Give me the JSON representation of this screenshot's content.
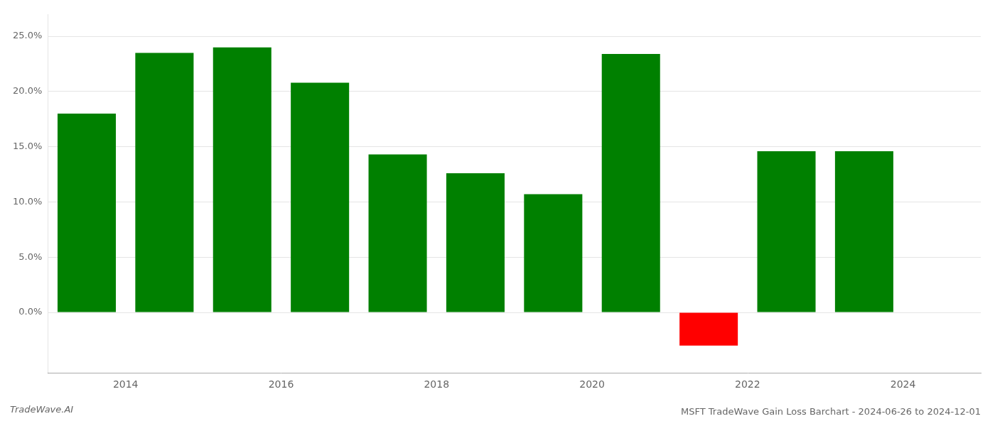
{
  "chart_data": {
    "type": "bar",
    "title": "MSFT TradeWave Gain Loss Barchart - 2024-06-26 to 2024-12-01",
    "annotations": [
      "TradeWave.AI"
    ],
    "x": [
      2013,
      2014,
      2015,
      2016,
      2017,
      2018,
      2019,
      2020,
      2021,
      2022,
      2023
    ],
    "values": [
      0.18,
      0.235,
      0.24,
      0.208,
      0.143,
      0.126,
      0.107,
      0.234,
      -0.03,
      0.146,
      0.146
    ],
    "colors": [
      "#008000",
      "#008000",
      "#008000",
      "#008000",
      "#008000",
      "#008000",
      "#008000",
      "#008000",
      "#ff0000",
      "#008000",
      "#008000"
    ],
    "xlim": [
      2012.5,
      2024.5
    ],
    "xticks": [
      {
        "value": 2013.5,
        "label": "2014"
      },
      {
        "value": 2015.5,
        "label": "2016"
      },
      {
        "value": 2017.5,
        "label": "2018"
      },
      {
        "value": 2019.5,
        "label": "2020"
      },
      {
        "value": 2021.5,
        "label": "2022"
      },
      {
        "value": 2023.5,
        "label": "2024"
      }
    ],
    "ylim": [
      -0.055,
      0.27
    ],
    "yticks": [
      {
        "value": 0.0,
        "label": "0.0%"
      },
      {
        "value": 0.05,
        "label": "5.0%"
      },
      {
        "value": 0.1,
        "label": "10.0%"
      },
      {
        "value": 0.15,
        "label": "15.0%"
      },
      {
        "value": 0.2,
        "label": "20.0%"
      },
      {
        "value": 0.25,
        "label": "25.0%"
      }
    ],
    "grid": "y"
  }
}
